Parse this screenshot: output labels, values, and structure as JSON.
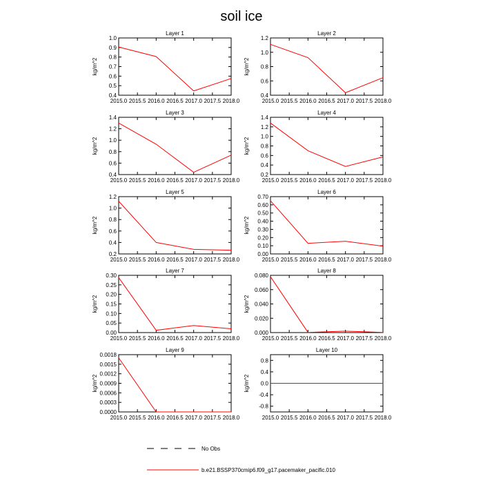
{
  "chart_data": {
    "type": "line",
    "title": "soil ice",
    "x": [
      2015.0,
      2016.0,
      2017.0,
      2018.0
    ],
    "xticks": [
      "2015.0",
      "2015.5",
      "2016.0",
      "2016.5",
      "2017.0",
      "2017.5",
      "2018.0"
    ],
    "xlim": [
      2015.0,
      2018.0
    ],
    "ylabel": "kg/m^2",
    "series_color": "#ff0000",
    "panels": [
      {
        "title": "Layer 1",
        "ylim": [
          0.4,
          1.0
        ],
        "yticks": [
          "0.4",
          "0.5",
          "0.6",
          "0.7",
          "0.8",
          "0.9",
          "1.0"
        ],
        "values": [
          0.905,
          0.805,
          0.445,
          0.575
        ]
      },
      {
        "title": "Layer 2",
        "ylim": [
          0.4,
          1.2
        ],
        "yticks": [
          "0.4",
          "0.6",
          "0.8",
          "1.0",
          "1.2"
        ],
        "values": [
          1.11,
          0.925,
          0.435,
          0.645
        ]
      },
      {
        "title": "Layer 3",
        "ylim": [
          0.4,
          1.4
        ],
        "yticks": [
          "0.4",
          "0.6",
          "0.8",
          "1.0",
          "1.2",
          "1.4"
        ],
        "values": [
          1.3,
          0.93,
          0.44,
          0.74
        ]
      },
      {
        "title": "Layer 4",
        "ylim": [
          0.2,
          1.4
        ],
        "yticks": [
          "0.2",
          "0.4",
          "0.6",
          "0.8",
          "1.0",
          "1.2",
          "1.4"
        ],
        "values": [
          1.28,
          0.7,
          0.37,
          0.57
        ]
      },
      {
        "title": "Layer 5",
        "ylim": [
          0.2,
          1.2
        ],
        "yticks": [
          "0.2",
          "0.4",
          "0.6",
          "0.8",
          "1.0",
          "1.2"
        ],
        "values": [
          1.12,
          0.4,
          0.28,
          0.265
        ]
      },
      {
        "title": "Layer 6",
        "ylim": [
          0.0,
          0.7
        ],
        "yticks": [
          "0.00",
          "0.10",
          "0.20",
          "0.30",
          "0.40",
          "0.50",
          "0.60",
          "0.70"
        ],
        "values": [
          0.65,
          0.13,
          0.155,
          0.095
        ]
      },
      {
        "title": "Layer 7",
        "ylim": [
          0.0,
          0.3
        ],
        "yticks": [
          "0.00",
          "0.05",
          "0.10",
          "0.15",
          "0.20",
          "0.25",
          "0.30"
        ],
        "values": [
          0.288,
          0.012,
          0.037,
          0.02
        ]
      },
      {
        "title": "Layer 8",
        "ylim": [
          0.0,
          0.08
        ],
        "yticks": [
          "0.000",
          "0.020",
          "0.040",
          "0.060",
          "0.080"
        ],
        "values": [
          0.078,
          0.0003,
          0.002,
          0.0002
        ]
      },
      {
        "title": "Layer 9",
        "ylim": [
          0.0,
          0.0018
        ],
        "yticks": [
          "0.0000",
          "0.0003",
          "0.0006",
          "0.0009",
          "0.0012",
          "0.0015",
          "0.0018"
        ],
        "values": [
          0.0017,
          0.0,
          0.0,
          0.0
        ]
      },
      {
        "title": "Layer 10",
        "ylim": [
          -1.0,
          1.0
        ],
        "yticks": [
          "-0.8",
          "-0.4",
          "0.0",
          "0.4",
          "0.8"
        ],
        "ytickvals": [
          -0.8,
          -0.4,
          0.0,
          0.4,
          0.8
        ],
        "values": [
          0.0,
          0.0,
          0.0,
          0.0
        ]
      }
    ],
    "legend": [
      {
        "label": "No Obs",
        "style": "dashed",
        "color": "#000000"
      },
      {
        "label": "b.e21.BSSP370cmip6.f09_g17.pacemaker_pacific.010",
        "style": "solid",
        "color": "#ff0000"
      }
    ],
    "legend_placement": "bottom-center"
  }
}
